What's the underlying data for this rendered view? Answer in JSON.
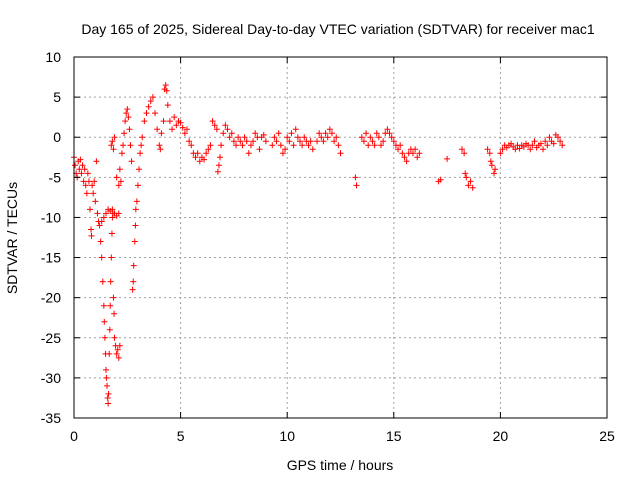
{
  "chart_data": {
    "type": "scatter",
    "title": "Day 165 of 2025, Sidereal Day-to-day VTEC variation (SDTVAR) for receiver mac1",
    "xlabel": "GPS time / hours",
    "ylabel": "SDTVAR / TECUs",
    "xlim": [
      0,
      25
    ],
    "ylim": [
      -35,
      10
    ],
    "xticks": [
      0,
      5,
      10,
      15,
      20,
      25
    ],
    "yticks": [
      -35,
      -30,
      -25,
      -20,
      -15,
      -10,
      -5,
      0,
      5,
      10
    ],
    "grid": true,
    "marker": "+",
    "color": "#ff0000",
    "series": [
      {
        "name": "SDTVAR",
        "points": [
          [
            0.0,
            -2.5
          ],
          [
            0.05,
            -3.5
          ],
          [
            0.1,
            -4.5
          ],
          [
            0.15,
            -5
          ],
          [
            0.2,
            -3
          ],
          [
            0.25,
            -4
          ],
          [
            0.3,
            -2.8
          ],
          [
            0.35,
            -4.5
          ],
          [
            0.4,
            -3.5
          ],
          [
            0.45,
            -5.5
          ],
          [
            0.5,
            -4
          ],
          [
            0.55,
            -6
          ],
          [
            0.6,
            -7
          ],
          [
            0.65,
            -4.5
          ],
          [
            0.7,
            -5.5
          ],
          [
            0.75,
            -9
          ],
          [
            0.8,
            -11.5
          ],
          [
            0.82,
            -12.3
          ],
          [
            0.85,
            -6
          ],
          [
            0.9,
            -7
          ],
          [
            0.95,
            -5.5
          ],
          [
            1.0,
            -8
          ],
          [
            1.05,
            -3
          ],
          [
            1.1,
            -9.5
          ],
          [
            1.15,
            -10.5
          ],
          [
            1.2,
            -11
          ],
          [
            1.25,
            -13
          ],
          [
            1.3,
            -15
          ],
          [
            1.35,
            -18
          ],
          [
            1.4,
            -21
          ],
          [
            1.42,
            -23
          ],
          [
            1.45,
            -25
          ],
          [
            1.48,
            -27
          ],
          [
            1.5,
            -29
          ],
          [
            1.52,
            -30
          ],
          [
            1.55,
            -31
          ],
          [
            1.58,
            -32.5
          ],
          [
            1.6,
            -33.2
          ],
          [
            1.62,
            -32
          ],
          [
            1.65,
            -27
          ],
          [
            1.68,
            -24
          ],
          [
            1.7,
            -21
          ],
          [
            1.72,
            -18
          ],
          [
            1.75,
            -15
          ],
          [
            1.78,
            -12
          ],
          [
            1.8,
            -10
          ],
          [
            1.82,
            -9.5
          ],
          [
            1.85,
            -20
          ],
          [
            1.88,
            -22
          ],
          [
            1.9,
            -25
          ],
          [
            1.95,
            -26
          ],
          [
            2.0,
            -27
          ],
          [
            2.05,
            -26.5
          ],
          [
            2.1,
            -27.5
          ],
          [
            2.15,
            -26
          ],
          [
            1.3,
            -10.5
          ],
          [
            1.4,
            -10
          ],
          [
            1.5,
            -9.5
          ],
          [
            1.6,
            -9
          ],
          [
            1.7,
            -9.2
          ],
          [
            1.8,
            -9
          ],
          [
            1.9,
            -9.5
          ],
          [
            2.0,
            -9.8
          ],
          [
            2.1,
            -9.5
          ],
          [
            1.75,
            -1
          ],
          [
            1.8,
            -0.5
          ],
          [
            1.85,
            -1.5
          ],
          [
            1.9,
            0
          ],
          [
            2.0,
            -5
          ],
          [
            2.1,
            -6
          ],
          [
            2.15,
            -4
          ],
          [
            2.2,
            -5.5
          ],
          [
            2.25,
            -2
          ],
          [
            2.3,
            -1
          ],
          [
            2.35,
            0.5
          ],
          [
            2.4,
            2
          ],
          [
            2.45,
            3
          ],
          [
            2.5,
            3.5
          ],
          [
            2.55,
            2.5
          ],
          [
            2.6,
            1
          ],
          [
            2.65,
            -1
          ],
          [
            2.7,
            -3
          ],
          [
            2.75,
            -19
          ],
          [
            2.78,
            -18
          ],
          [
            2.8,
            -16
          ],
          [
            2.85,
            -13
          ],
          [
            2.88,
            -11
          ],
          [
            2.9,
            -9
          ],
          [
            2.95,
            -8
          ],
          [
            3.0,
            -6
          ],
          [
            3.05,
            -4
          ],
          [
            3.1,
            -2
          ],
          [
            3.15,
            -1
          ],
          [
            3.2,
            0
          ],
          [
            3.3,
            2
          ],
          [
            3.4,
            3
          ],
          [
            3.5,
            3.8
          ],
          [
            3.6,
            4.5
          ],
          [
            3.7,
            5
          ],
          [
            3.8,
            3
          ],
          [
            3.9,
            1
          ],
          [
            4.0,
            -1
          ],
          [
            4.05,
            -1.5
          ],
          [
            4.1,
            0.5
          ],
          [
            4.2,
            2
          ],
          [
            4.25,
            6
          ],
          [
            4.3,
            6.5
          ],
          [
            4.35,
            5.8
          ],
          [
            4.4,
            4
          ],
          [
            4.5,
            2
          ],
          [
            4.6,
            1
          ],
          [
            4.7,
            2.5
          ],
          [
            4.8,
            1.5
          ],
          [
            4.9,
            2
          ],
          [
            5.0,
            1.8
          ],
          [
            5.1,
            1.2
          ],
          [
            5.2,
            0.5
          ],
          [
            5.3,
            1
          ],
          [
            5.4,
            -0.5
          ],
          [
            5.5,
            -1
          ],
          [
            5.6,
            -2
          ],
          [
            5.7,
            -2.5
          ],
          [
            5.8,
            -2
          ],
          [
            5.9,
            -3
          ],
          [
            6.0,
            -2.5
          ],
          [
            6.1,
            -2.8
          ],
          [
            6.2,
            -2
          ],
          [
            6.3,
            -1.5
          ],
          [
            6.4,
            -1
          ],
          [
            6.5,
            2
          ],
          [
            6.6,
            1.5
          ],
          [
            6.7,
            1
          ],
          [
            6.75,
            -4.3
          ],
          [
            6.8,
            -3.5
          ],
          [
            6.85,
            -2.5
          ],
          [
            6.9,
            -1
          ],
          [
            7.0,
            0.5
          ],
          [
            7.1,
            1.5
          ],
          [
            7.2,
            1
          ],
          [
            7.3,
            0
          ],
          [
            7.4,
            0.5
          ],
          [
            7.5,
            -0.5
          ],
          [
            7.6,
            -1
          ],
          [
            7.7,
            0
          ],
          [
            7.8,
            -0.5
          ],
          [
            7.9,
            -1
          ],
          [
            8.0,
            0
          ],
          [
            8.1,
            -0.5
          ],
          [
            8.2,
            -2
          ],
          [
            8.3,
            -1
          ],
          [
            8.4,
            -0.5
          ],
          [
            8.5,
            0.5
          ],
          [
            8.6,
            0
          ],
          [
            8.7,
            -1.5
          ],
          [
            8.8,
            0
          ],
          [
            8.9,
            0.3
          ],
          [
            9.0,
            -0.5
          ],
          [
            9.3,
            -1
          ],
          [
            9.4,
            0
          ],
          [
            9.5,
            -0.5
          ],
          [
            9.6,
            0.5
          ],
          [
            9.7,
            -1
          ],
          [
            9.8,
            -2
          ],
          [
            9.9,
            -1.5
          ],
          [
            10.0,
            0
          ],
          [
            10.1,
            -0.5
          ],
          [
            10.2,
            0.5
          ],
          [
            10.3,
            -1
          ],
          [
            10.4,
            1
          ],
          [
            10.5,
            0
          ],
          [
            10.6,
            -0.5
          ],
          [
            10.7,
            -1
          ],
          [
            10.8,
            0
          ],
          [
            10.9,
            -0.5
          ],
          [
            11.0,
            -1
          ],
          [
            11.1,
            -0.5
          ],
          [
            11.2,
            -1.5
          ],
          [
            11.4,
            -0.5
          ],
          [
            11.5,
            0.5
          ],
          [
            11.6,
            0
          ],
          [
            11.7,
            -0.5
          ],
          [
            11.8,
            0.5
          ],
          [
            11.9,
            0
          ],
          [
            12.0,
            1
          ],
          [
            12.1,
            0.5
          ],
          [
            12.2,
            -0.5
          ],
          [
            12.3,
            0
          ],
          [
            12.4,
            -1
          ],
          [
            12.5,
            -2
          ],
          [
            13.2,
            -5
          ],
          [
            13.25,
            -6
          ],
          [
            13.5,
            0
          ],
          [
            13.6,
            -0.5
          ],
          [
            13.7,
            0.5
          ],
          [
            13.8,
            -1
          ],
          [
            13.9,
            0
          ],
          [
            14.0,
            -0.5
          ],
          [
            14.1,
            -1
          ],
          [
            14.2,
            0.5
          ],
          [
            14.3,
            0
          ],
          [
            14.4,
            -1
          ],
          [
            14.5,
            -0.5
          ],
          [
            14.6,
            0.5
          ],
          [
            14.7,
            1
          ],
          [
            14.8,
            0.5
          ],
          [
            14.9,
            0
          ],
          [
            15.0,
            -0.5
          ],
          [
            15.1,
            -1
          ],
          [
            15.2,
            -1.5
          ],
          [
            15.3,
            -1
          ],
          [
            15.4,
            -2
          ],
          [
            15.5,
            -2.5
          ],
          [
            15.6,
            -3
          ],
          [
            15.7,
            -2
          ],
          [
            15.8,
            -1.5
          ],
          [
            15.9,
            -2
          ],
          [
            16.0,
            -1.5
          ],
          [
            16.1,
            -2.5
          ],
          [
            16.2,
            -2
          ],
          [
            17.1,
            -5.5
          ],
          [
            17.2,
            -5.3
          ],
          [
            17.5,
            -2.7
          ],
          [
            18.2,
            -1.5
          ],
          [
            18.3,
            -2
          ],
          [
            18.35,
            -4.5
          ],
          [
            18.4,
            -5
          ],
          [
            18.5,
            -6
          ],
          [
            18.6,
            -5.5
          ],
          [
            18.7,
            -6.3
          ],
          [
            19.4,
            -1.5
          ],
          [
            19.5,
            -2
          ],
          [
            19.55,
            -3
          ],
          [
            19.6,
            -3.5
          ],
          [
            19.7,
            -4.5
          ],
          [
            19.75,
            -4
          ],
          [
            20.0,
            -2
          ],
          [
            20.1,
            -1.5
          ],
          [
            20.2,
            -1
          ],
          [
            20.3,
            -1.3
          ],
          [
            20.4,
            -1
          ],
          [
            20.5,
            -0.8
          ],
          [
            20.6,
            -1.2
          ],
          [
            20.7,
            -1.5
          ],
          [
            20.8,
            -1
          ],
          [
            20.9,
            -1.4
          ],
          [
            21.0,
            -1
          ],
          [
            21.1,
            -1.2
          ],
          [
            21.2,
            -0.8
          ],
          [
            21.3,
            -1
          ],
          [
            21.4,
            -1.5
          ],
          [
            21.5,
            -1
          ],
          [
            21.6,
            -0.5
          ],
          [
            21.7,
            -1.3
          ],
          [
            21.8,
            -1
          ],
          [
            21.9,
            -0.8
          ],
          [
            22.0,
            -1.5
          ],
          [
            22.1,
            -0.5
          ],
          [
            22.2,
            -1
          ],
          [
            22.3,
            0
          ],
          [
            22.4,
            -0.5
          ],
          [
            22.5,
            -0.8
          ],
          [
            22.6,
            0.3
          ],
          [
            22.7,
            0
          ],
          [
            22.8,
            -0.5
          ],
          [
            22.9,
            -1
          ]
        ]
      }
    ]
  }
}
